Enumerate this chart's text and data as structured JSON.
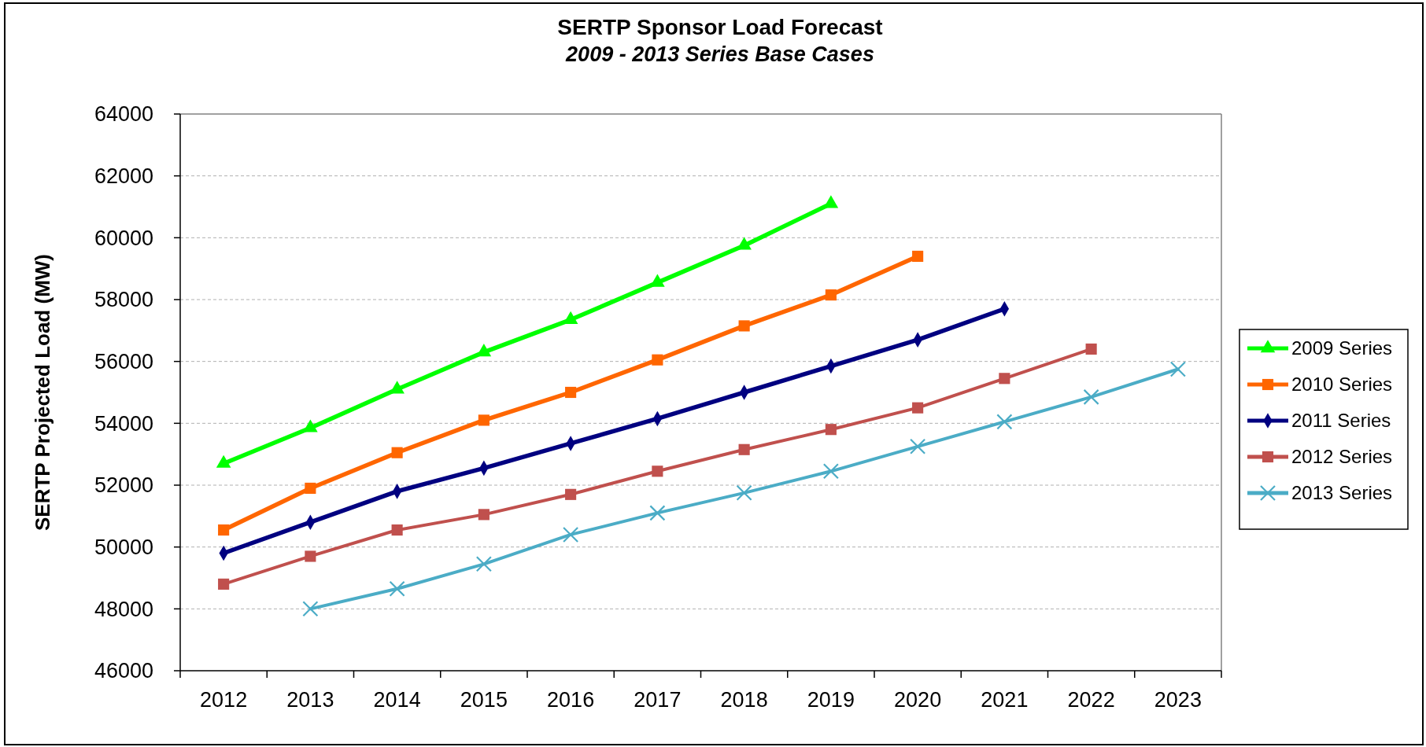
{
  "chart_data": {
    "type": "line",
    "title": "SERTP Sponsor Load Forecast",
    "subtitle": "2009 - 2013 Series Base Cases",
    "ylabel": "SERTP Projected Load (MW)",
    "categories": [
      "2012",
      "2013",
      "2014",
      "2015",
      "2016",
      "2017",
      "2018",
      "2019",
      "2020",
      "2021",
      "2022",
      "2023"
    ],
    "series": [
      {
        "name": "2009 Series",
        "color": "#00ff00",
        "marker": "triangle",
        "values": [
          52700,
          53850,
          55100,
          56300,
          57350,
          58550,
          59750,
          61100,
          null,
          null,
          null,
          null
        ]
      },
      {
        "name": "2010 Series",
        "color": "#ff6600",
        "marker": "square",
        "values": [
          50550,
          51900,
          53050,
          54100,
          55000,
          56050,
          57150,
          58150,
          59400,
          null,
          null,
          null
        ]
      },
      {
        "name": "2011 Series",
        "color": "#000080",
        "marker": "diamond",
        "values": [
          49800,
          50800,
          51800,
          52550,
          53350,
          54150,
          55000,
          55850,
          56700,
          57700,
          null,
          null
        ]
      },
      {
        "name": "2012 Series",
        "color": "#c0504d",
        "marker": "square",
        "values": [
          48800,
          49700,
          50550,
          51050,
          51700,
          52450,
          53150,
          53800,
          54500,
          55450,
          56400,
          null
        ]
      },
      {
        "name": "2013 Series",
        "color": "#4bacc6",
        "marker": "cross",
        "values": [
          null,
          48000,
          48650,
          49450,
          50400,
          51100,
          51750,
          52450,
          53250,
          54050,
          54850,
          55750
        ]
      }
    ],
    "ylim": [
      46000,
      64000
    ],
    "yticks": [
      46000,
      48000,
      50000,
      52000,
      54000,
      56000,
      58000,
      60000,
      62000,
      64000
    ],
    "grid": "y",
    "legend": "right"
  }
}
